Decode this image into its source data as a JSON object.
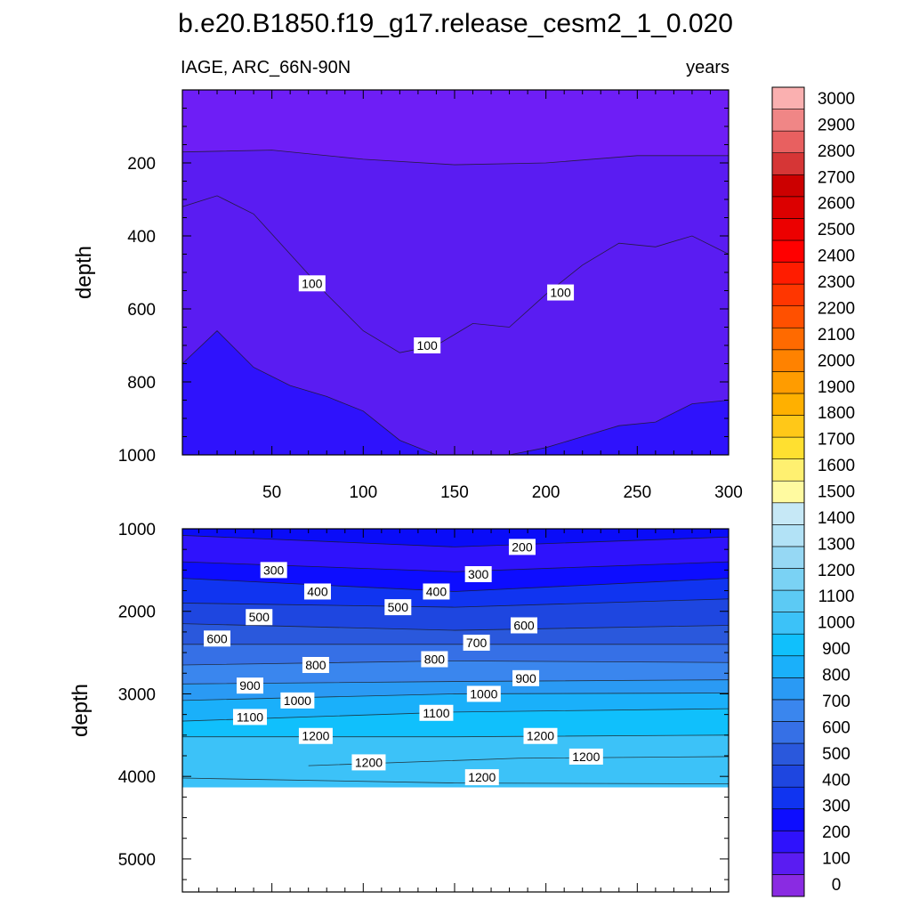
{
  "figure": {
    "title": "b.e20.B1850.f19_g17.release_cesm2_1_0.020",
    "left_label": "IAGE, ARC_66N-90N",
    "right_label": "years"
  },
  "chart_data": [
    {
      "type": "contour",
      "panel": "upper",
      "variable": "IAGE",
      "region": "ARC_66N-90N",
      "units": "years",
      "xlim": [
        1,
        300
      ],
      "ylim": [
        1000,
        0
      ],
      "ylabel": "depth",
      "xticks": [
        50,
        100,
        150,
        200,
        250,
        300
      ],
      "yticks": [
        200,
        400,
        600,
        800,
        1000
      ],
      "contour_lines": [
        {
          "level": 100,
          "x": [
            1,
            20,
            40,
            60,
            80,
            100,
            120,
            140,
            160,
            180,
            200,
            220,
            240,
            260,
            280,
            300
          ],
          "depth": [
            320,
            290,
            340,
            450,
            560,
            660,
            720,
            700,
            640,
            650,
            560,
            480,
            420,
            430,
            400,
            450
          ]
        },
        {
          "level": 200,
          "x": [
            1,
            20,
            40,
            60,
            80,
            100,
            120,
            140,
            160,
            180,
            200,
            220,
            240,
            260,
            280,
            300
          ],
          "depth": [
            750,
            660,
            760,
            810,
            840,
            880,
            960,
            1000,
            1000,
            1000,
            980,
            950,
            920,
            910,
            860,
            850
          ]
        },
        {
          "level": 50,
          "x": [
            1,
            50,
            100,
            150,
            200,
            250,
            300
          ],
          "depth": [
            170,
            165,
            190,
            205,
            200,
            180,
            180
          ]
        }
      ],
      "contour_labels": [
        {
          "text": "100",
          "x": 72,
          "depth": 530
        },
        {
          "text": "100",
          "x": 135,
          "depth": 700
        },
        {
          "text": "100",
          "x": 208,
          "depth": 555
        }
      ]
    },
    {
      "type": "contour",
      "panel": "lower",
      "variable": "IAGE",
      "region": "ARC_66N-90N",
      "units": "years",
      "xlim": [
        1,
        300
      ],
      "ylim": [
        5400,
        1000
      ],
      "ylabel": "depth",
      "yticks": [
        1000,
        2000,
        3000,
        4000,
        5000
      ],
      "sea_floor_depth": 4130,
      "contour_lines": [
        {
          "level": 200,
          "x": [
            1,
            150,
            300
          ],
          "depth": [
            1080,
            1220,
            1100
          ]
        },
        {
          "level": 300,
          "x": [
            1,
            150,
            300
          ],
          "depth": [
            1400,
            1520,
            1400
          ]
        },
        {
          "level": 400,
          "x": [
            1,
            150,
            300
          ],
          "depth": [
            1600,
            1760,
            1600
          ]
        },
        {
          "level": 500,
          "x": [
            1,
            150,
            300
          ],
          "depth": [
            1900,
            1950,
            1850
          ]
        },
        {
          "level": 600,
          "x": [
            1,
            150,
            300
          ],
          "depth": [
            2150,
            2230,
            2170
          ]
        },
        {
          "level": 700,
          "x": [
            1,
            150,
            300
          ],
          "depth": [
            2400,
            2400,
            2400
          ]
        },
        {
          "level": 800,
          "x": [
            1,
            150,
            300
          ],
          "depth": [
            2650,
            2600,
            2620
          ]
        },
        {
          "level": 900,
          "x": [
            1,
            150,
            300
          ],
          "depth": [
            2880,
            2850,
            2830
          ]
        },
        {
          "level": 1000,
          "x": [
            1,
            150,
            300
          ],
          "depth": [
            3080,
            3000,
            2990
          ]
        },
        {
          "level": 1100,
          "x": [
            1,
            150,
            300
          ],
          "depth": [
            3330,
            3220,
            3180
          ]
        },
        {
          "level": 1200,
          "x": [
            1,
            150,
            300
          ],
          "depth": [
            3520,
            3520,
            3500
          ]
        },
        {
          "level": 1200,
          "x": [
            70,
            185,
            300
          ],
          "depth": [
            3870,
            3780,
            3760
          ]
        },
        {
          "level": 1200,
          "x": [
            1,
            150,
            300
          ],
          "depth": [
            4020,
            4080,
            4090
          ]
        }
      ],
      "contour_labels": [
        {
          "text": "200",
          "x": 187,
          "depth": 1220
        },
        {
          "text": "300",
          "x": 51,
          "depth": 1500
        },
        {
          "text": "300",
          "x": 163,
          "depth": 1550
        },
        {
          "text": "400",
          "x": 75,
          "depth": 1760
        },
        {
          "text": "400",
          "x": 140,
          "depth": 1760
        },
        {
          "text": "500",
          "x": 43,
          "depth": 2070
        },
        {
          "text": "500",
          "x": 119,
          "depth": 1950
        },
        {
          "text": "600",
          "x": 20,
          "depth": 2330
        },
        {
          "text": "600",
          "x": 188,
          "depth": 2170
        },
        {
          "text": "700",
          "x": 162,
          "depth": 2380
        },
        {
          "text": "800",
          "x": 74,
          "depth": 2650
        },
        {
          "text": "800",
          "x": 139,
          "depth": 2580
        },
        {
          "text": "900",
          "x": 38,
          "depth": 2900
        },
        {
          "text": "900",
          "x": 189,
          "depth": 2810
        },
        {
          "text": "1000",
          "x": 64,
          "depth": 3080
        },
        {
          "text": "1000",
          "x": 166,
          "depth": 3000
        },
        {
          "text": "1100",
          "x": 38,
          "depth": 3280
        },
        {
          "text": "1100",
          "x": 140,
          "depth": 3230
        },
        {
          "text": "1200",
          "x": 74,
          "depth": 3510
        },
        {
          "text": "1200",
          "x": 197,
          "depth": 3510
        },
        {
          "text": "1200",
          "x": 103,
          "depth": 3830
        },
        {
          "text": "1200",
          "x": 222,
          "depth": 3760
        },
        {
          "text": "1200",
          "x": 165,
          "depth": 4010
        }
      ]
    }
  ],
  "colorbar": {
    "labels": [
      "0",
      "100",
      "200",
      "300",
      "400",
      "500",
      "600",
      "700",
      "800",
      "900",
      "1000",
      "1100",
      "1200",
      "1300",
      "1400",
      "1500",
      "1600",
      "1700",
      "1800",
      "1900",
      "2000",
      "2100",
      "2200",
      "2300",
      "2400",
      "2500",
      "2600",
      "2700",
      "2800",
      "2900",
      "3000"
    ],
    "colors": [
      "#8a2be2",
      "#5a1cf2",
      "#2f12fc",
      "#0d0dff",
      "#1034f0",
      "#1e46e0",
      "#2a58dc",
      "#3670e6",
      "#3a86ee",
      "#2a9af4",
      "#1ab0fa",
      "#10c0fc",
      "#3cc2f8",
      "#5ccaf4",
      "#7ad2f4",
      "#96d8f4",
      "#b2e2f6",
      "#c6e8f6",
      "#fffaa0",
      "#fff070",
      "#ffe030",
      "#ffc818",
      "#ffb000",
      "#ff9c00",
      "#ff8200",
      "#ff6a00",
      "#ff5000",
      "#ff3600",
      "#ff1c00",
      "#ff0000",
      "#ec0000",
      "#dc0000",
      "#cc0000",
      "#d63636",
      "#e86060",
      "#f08686",
      "#fab0b0"
    ]
  }
}
